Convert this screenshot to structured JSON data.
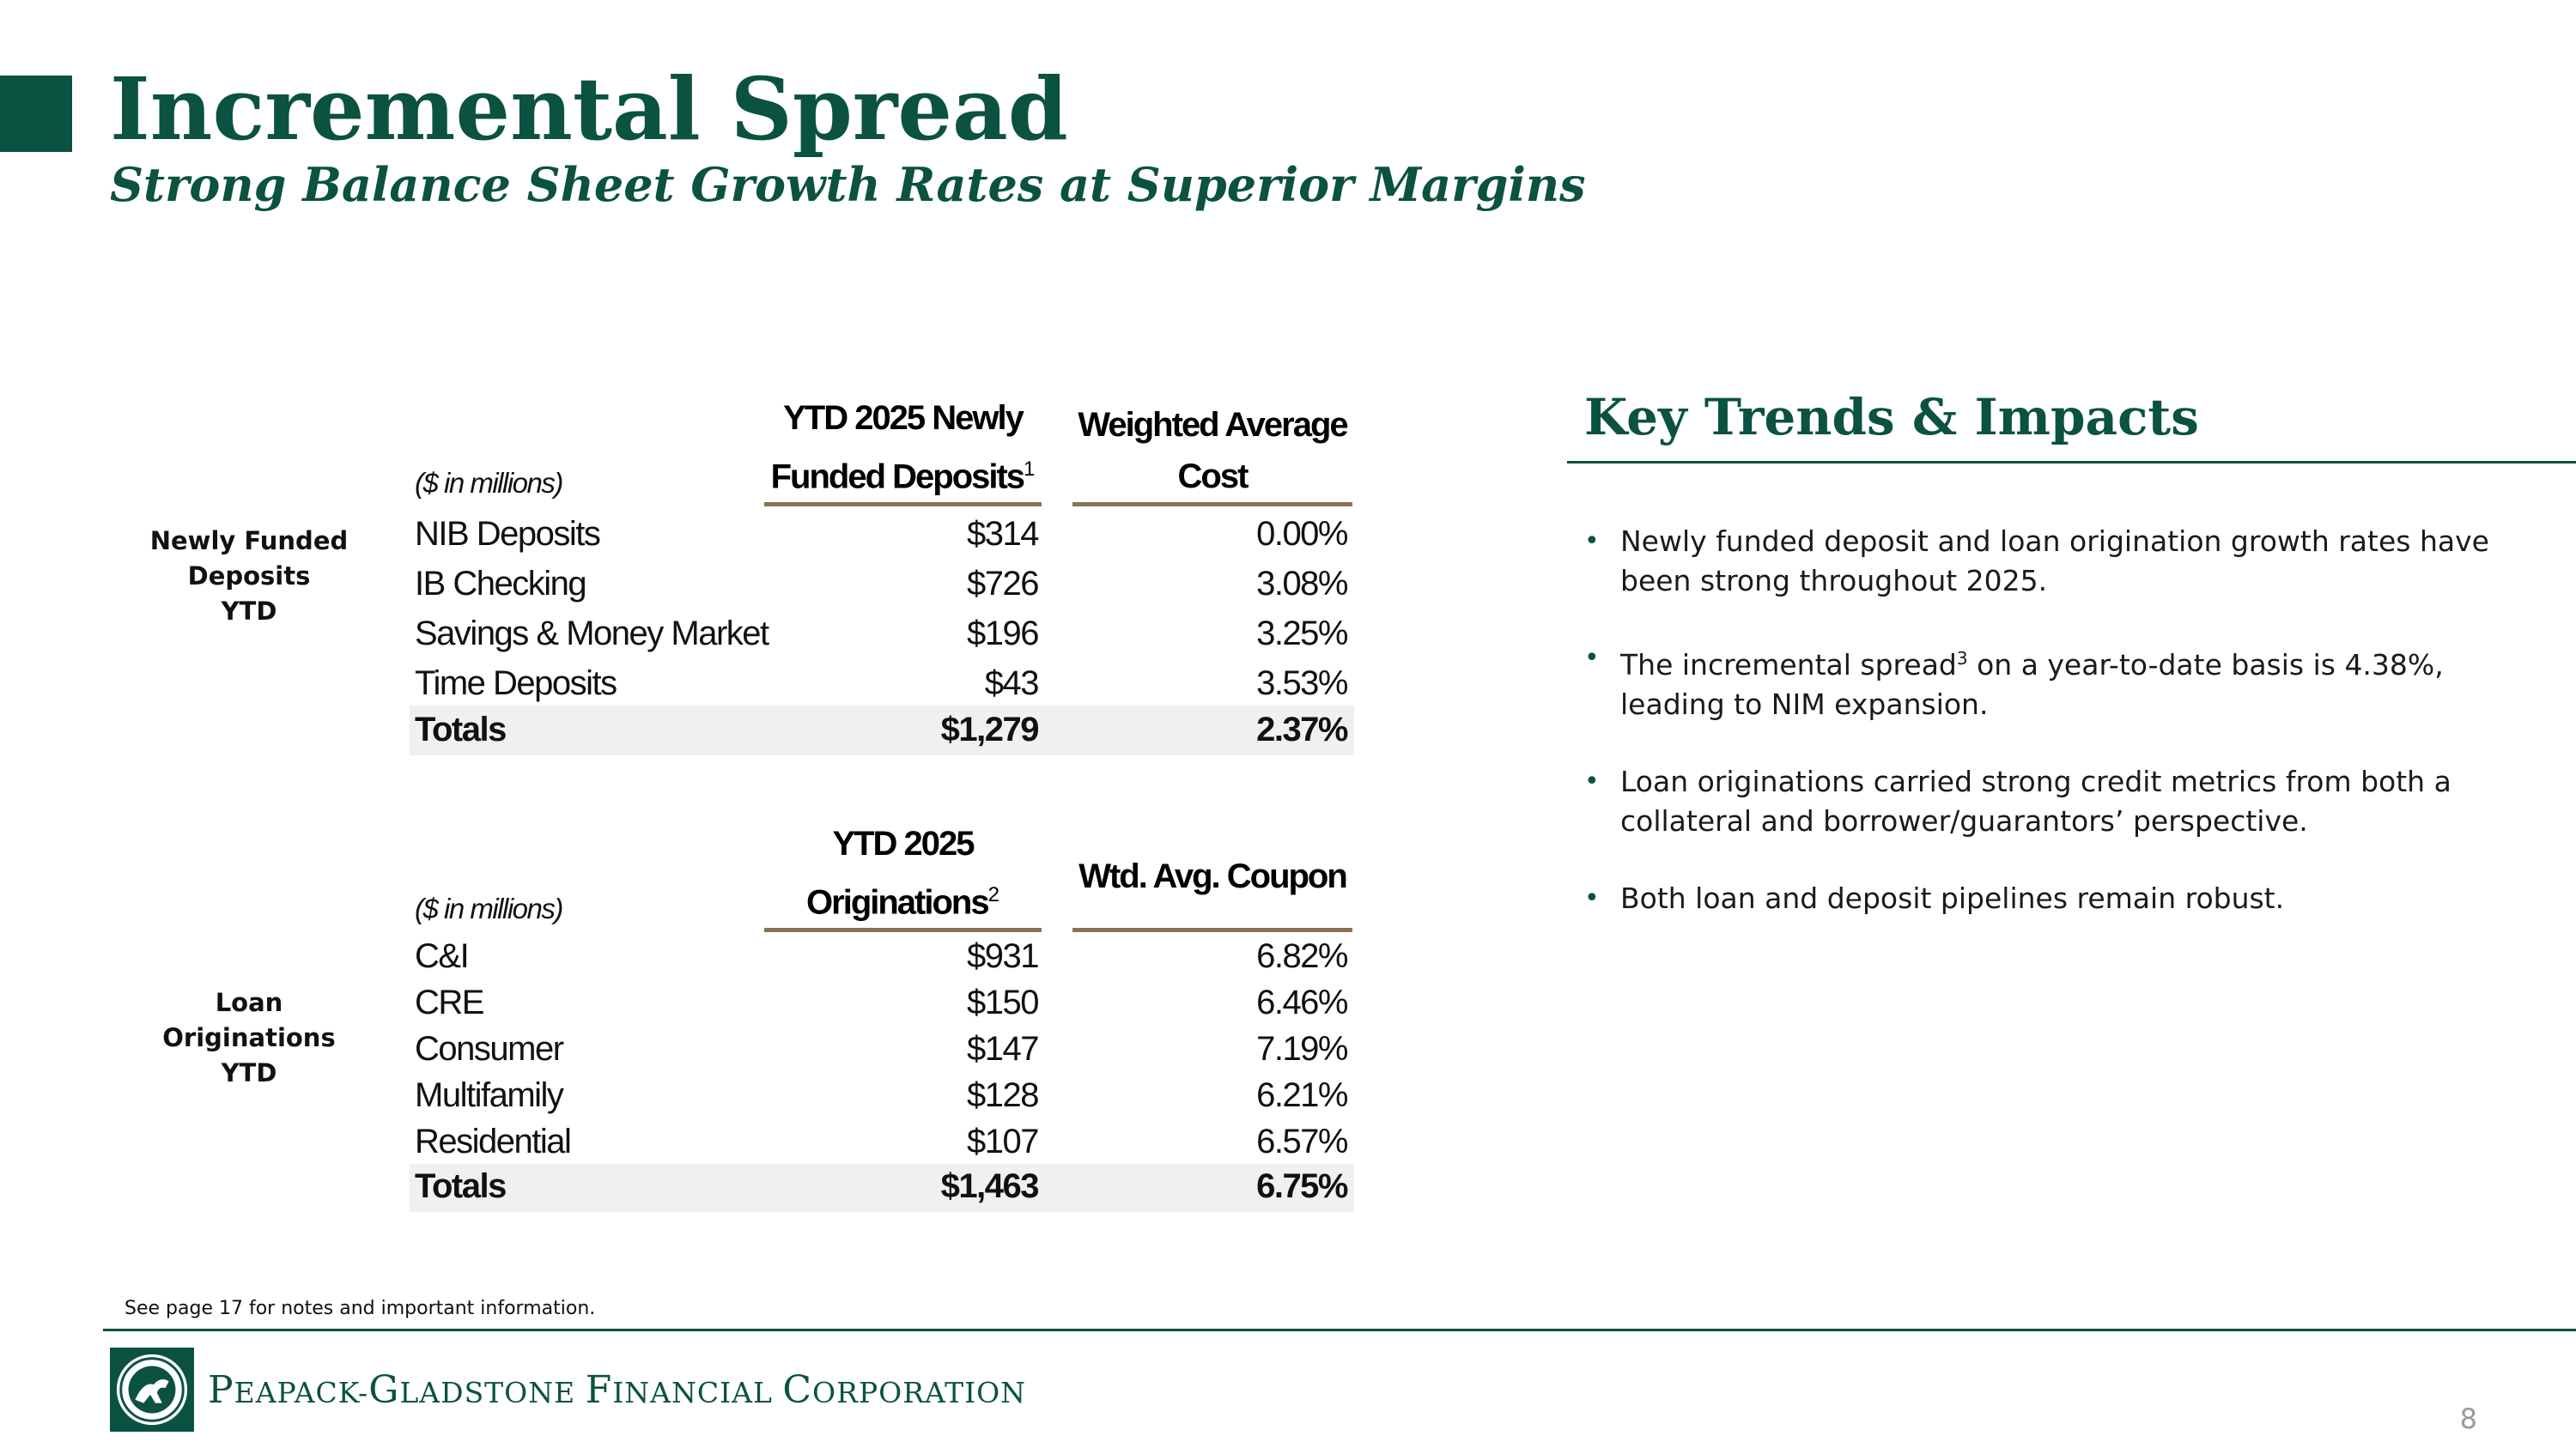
{
  "header": {
    "title": "Incremental Spread",
    "subtitle": "Strong Balance Sheet Growth Rates at Superior Margins"
  },
  "deposits": {
    "section_label": [
      "Newly Funded",
      "Deposits",
      "YTD"
    ],
    "units": "($ in millions)",
    "col1_header": [
      "YTD 2025 Newly",
      "Funded Deposits"
    ],
    "col1_sup": "1",
    "col2_header": [
      "Weighted Average",
      "Cost"
    ],
    "rows": [
      {
        "label": "NIB Deposits",
        "amount": "$314",
        "rate": "0.00%"
      },
      {
        "label": "IB Checking",
        "amount": "$726",
        "rate": "3.08%"
      },
      {
        "label": "Savings & Money Market",
        "amount": "$196",
        "rate": "3.25%"
      },
      {
        "label": "Time Deposits",
        "amount": "$43",
        "rate": "3.53%"
      }
    ],
    "total": {
      "label": "Totals",
      "amount": "$1,279",
      "rate": "2.37%"
    }
  },
  "loans": {
    "section_label": [
      "Loan",
      "Originations",
      "YTD"
    ],
    "units": "($ in millions)",
    "col1_header": [
      "YTD 2025",
      "Originations"
    ],
    "col1_sup": "2",
    "col2_header": "Wtd. Avg. Coupon",
    "rows": [
      {
        "label": "C&I",
        "amount": "$931",
        "rate": "6.82%"
      },
      {
        "label": "CRE",
        "amount": "$150",
        "rate": "6.46%"
      },
      {
        "label": "Consumer",
        "amount": "$147",
        "rate": "7.19%"
      },
      {
        "label": "Multifamily",
        "amount": "$128",
        "rate": "6.21%"
      },
      {
        "label": "Residential",
        "amount": "$107",
        "rate": "6.57%"
      }
    ],
    "total": {
      "label": "Totals",
      "amount": "$1,463",
      "rate": "6.75%"
    }
  },
  "trends": {
    "title": "Key Trends & Impacts",
    "bullets": [
      {
        "text": "Newly funded deposit and loan origination growth rates have been strong throughout 2025."
      },
      {
        "text_before": "The incremental spread",
        "sup": "3",
        "text_after": " on a year-to-date basis is 4.38%, leading to NIM expansion."
      },
      {
        "text": "Loan originations carried strong credit metrics from both a collateral and borrower/guarantors’ perspective."
      },
      {
        "text": "Both loan and deposit pipelines remain robust."
      }
    ]
  },
  "footer": {
    "footnote": "See page 17 for notes and important information.",
    "company": {
      "p1": "P",
      "p2": "EAPACK-",
      "g1": "G",
      "g2": "LADSTONE ",
      "f1": "F",
      "f2": "INANCIAL ",
      "c1": "C",
      "c2": "ORPORATION"
    },
    "page_number": "8"
  },
  "colors": {
    "brand_green": "#0b5240",
    "rule_brown": "#8a7355",
    "total_fill": "#f0f0f0"
  }
}
